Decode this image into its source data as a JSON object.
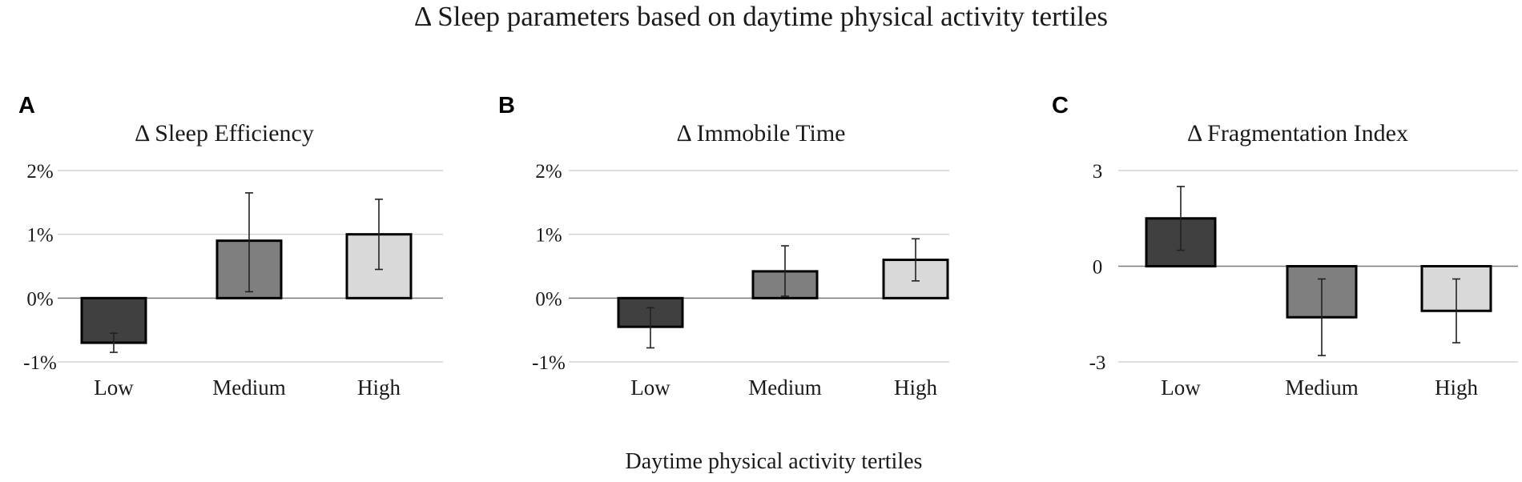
{
  "title": "Δ Sleep parameters based on daytime physical activity tertiles",
  "xlabel": "Daytime physical activity tertiles",
  "colors": {
    "Low": "#404040",
    "Medium": "#7f7f7f",
    "High": "#d9d9d9"
  },
  "chart_data": [
    {
      "type": "bar",
      "panel": "A",
      "title": "Δ Sleep Efficiency",
      "categories": [
        "Low",
        "Medium",
        "High"
      ],
      "values": [
        -0.7,
        0.9,
        1.0
      ],
      "error_low": [
        -0.85,
        0.1,
        0.45
      ],
      "error_high": [
        -0.55,
        1.65,
        1.55
      ],
      "ylim": [
        -1,
        2
      ],
      "yticks": [
        -1,
        0,
        1,
        2
      ],
      "ytick_labels": [
        "-1%",
        "0%",
        "1%",
        "2%"
      ],
      "grid": true,
      "legend": "none"
    },
    {
      "type": "bar",
      "panel": "B",
      "title": "Δ Immobile Time",
      "categories": [
        "Low",
        "Medium",
        "High"
      ],
      "values": [
        -0.45,
        0.42,
        0.6
      ],
      "error_low": [
        -0.78,
        0.03,
        0.27
      ],
      "error_high": [
        -0.15,
        0.82,
        0.93
      ],
      "ylim": [
        -1,
        2
      ],
      "yticks": [
        -1,
        0,
        1,
        2
      ],
      "ytick_labels": [
        "-1%",
        "0%",
        "1%",
        "2%"
      ],
      "grid": true,
      "legend": "none"
    },
    {
      "type": "bar",
      "panel": "C",
      "title": "Δ Fragmentation Index",
      "categories": [
        "Low",
        "Medium",
        "High"
      ],
      "values": [
        1.5,
        -1.6,
        -1.4
      ],
      "error_low": [
        0.5,
        -2.8,
        -2.4
      ],
      "error_high": [
        2.5,
        -0.4,
        -0.4
      ],
      "ylim": [
        -3,
        3
      ],
      "yticks": [
        -3,
        0,
        3
      ],
      "ytick_labels": [
        "-3",
        "0",
        "3"
      ],
      "grid": true,
      "legend": "none"
    }
  ]
}
